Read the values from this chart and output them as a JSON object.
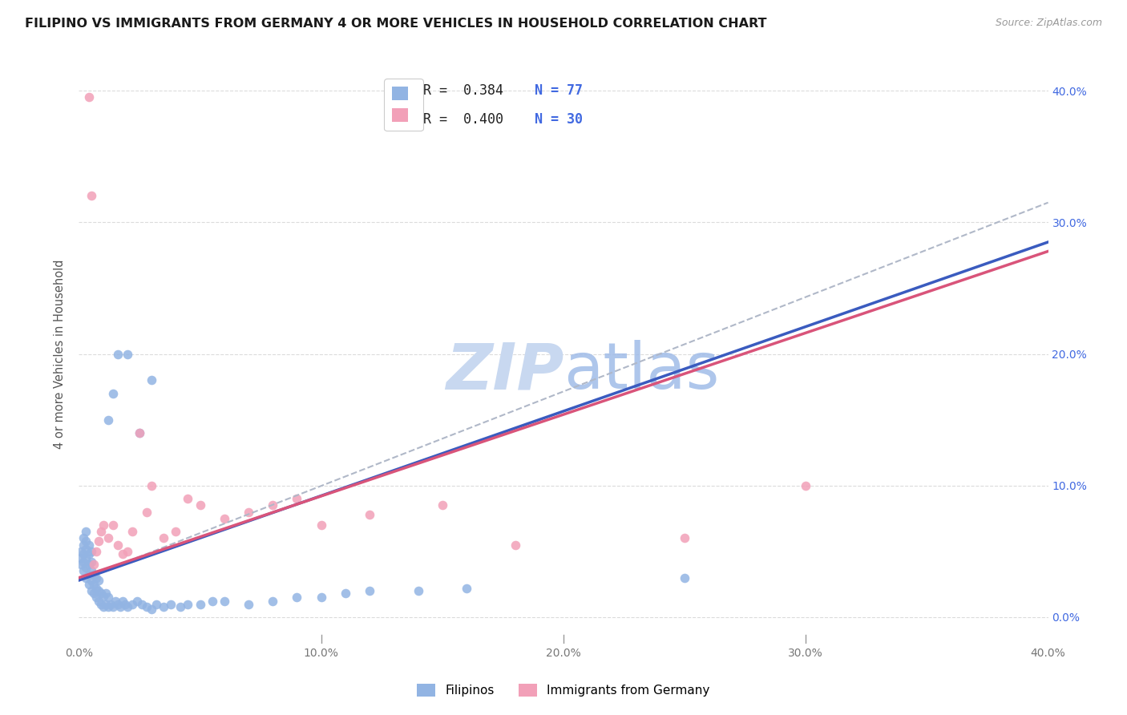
{
  "title": "FILIPINO VS IMMIGRANTS FROM GERMANY 4 OR MORE VEHICLES IN HOUSEHOLD CORRELATION CHART",
  "source": "Source: ZipAtlas.com",
  "ylabel": "4 or more Vehicles in Household",
  "xlim": [
    0.0,
    0.4
  ],
  "ylim": [
    -0.02,
    0.42
  ],
  "xtick_vals": [
    0.0,
    0.1,
    0.2,
    0.3,
    0.4
  ],
  "xtick_labels": [
    "0.0%",
    "10.0%",
    "20.0%",
    "30.0%",
    "40.0%"
  ],
  "ytick_vals": [
    0.0,
    0.1,
    0.2,
    0.3,
    0.4
  ],
  "ytick_labels_right": [
    "0.0%",
    "10.0%",
    "20.0%",
    "30.0%",
    "40.0%"
  ],
  "legend_R_fil": "R =  0.384",
  "legend_N_fil": "N = 77",
  "legend_R_ger": "R =  0.400",
  "legend_N_ger": "N = 30",
  "legend_labels": [
    "Filipinos",
    "Immigrants from Germany"
  ],
  "filipino_color": "#92b4e3",
  "german_color": "#f2a0b8",
  "filipino_line_color": "#3a5bbf",
  "german_line_color": "#d9547a",
  "dashed_line_color": "#b0b8c8",
  "watermark_color": "#c8d8f0",
  "background_color": "#ffffff",
  "grid_color": "#d8d8d8",
  "fil_x": [
    0.001,
    0.001,
    0.001,
    0.002,
    0.002,
    0.002,
    0.002,
    0.002,
    0.003,
    0.003,
    0.003,
    0.003,
    0.003,
    0.003,
    0.004,
    0.004,
    0.004,
    0.004,
    0.004,
    0.005,
    0.005,
    0.005,
    0.005,
    0.005,
    0.006,
    0.006,
    0.006,
    0.007,
    0.007,
    0.007,
    0.008,
    0.008,
    0.008,
    0.009,
    0.009,
    0.01,
    0.01,
    0.011,
    0.011,
    0.012,
    0.012,
    0.013,
    0.014,
    0.015,
    0.016,
    0.017,
    0.018,
    0.019,
    0.02,
    0.022,
    0.024,
    0.026,
    0.028,
    0.03,
    0.032,
    0.035,
    0.038,
    0.042,
    0.045,
    0.05,
    0.055,
    0.06,
    0.07,
    0.08,
    0.09,
    0.1,
    0.11,
    0.12,
    0.14,
    0.16,
    0.012,
    0.014,
    0.016,
    0.02,
    0.025,
    0.03,
    0.25
  ],
  "fil_y": [
    0.04,
    0.045,
    0.05,
    0.035,
    0.042,
    0.048,
    0.055,
    0.06,
    0.03,
    0.038,
    0.045,
    0.052,
    0.058,
    0.065,
    0.025,
    0.032,
    0.04,
    0.048,
    0.055,
    0.02,
    0.028,
    0.035,
    0.042,
    0.05,
    0.018,
    0.025,
    0.032,
    0.015,
    0.022,
    0.03,
    0.012,
    0.02,
    0.028,
    0.01,
    0.018,
    0.008,
    0.016,
    0.01,
    0.018,
    0.008,
    0.015,
    0.01,
    0.008,
    0.012,
    0.01,
    0.008,
    0.012,
    0.01,
    0.008,
    0.01,
    0.012,
    0.01,
    0.008,
    0.006,
    0.01,
    0.008,
    0.01,
    0.008,
    0.01,
    0.01,
    0.012,
    0.012,
    0.01,
    0.012,
    0.015,
    0.015,
    0.018,
    0.02,
    0.02,
    0.022,
    0.15,
    0.17,
    0.2,
    0.2,
    0.14,
    0.18,
    0.03
  ],
  "ger_x": [
    0.004,
    0.005,
    0.006,
    0.007,
    0.008,
    0.009,
    0.01,
    0.012,
    0.014,
    0.016,
    0.018,
    0.02,
    0.022,
    0.025,
    0.028,
    0.03,
    0.035,
    0.04,
    0.045,
    0.05,
    0.06,
    0.07,
    0.08,
    0.09,
    0.1,
    0.12,
    0.15,
    0.18,
    0.25,
    0.3
  ],
  "ger_y": [
    0.395,
    0.32,
    0.04,
    0.05,
    0.058,
    0.065,
    0.07,
    0.06,
    0.07,
    0.055,
    0.048,
    0.05,
    0.065,
    0.14,
    0.08,
    0.1,
    0.06,
    0.065,
    0.09,
    0.085,
    0.075,
    0.08,
    0.085,
    0.09,
    0.07,
    0.078,
    0.085,
    0.055,
    0.06,
    0.1
  ],
  "fil_line_x0": 0.0,
  "fil_line_y0": 0.028,
  "fil_line_x1": 0.4,
  "fil_line_y1": 0.285,
  "ger_line_x0": 0.0,
  "ger_line_y0": 0.03,
  "ger_line_x1": 0.4,
  "ger_line_y1": 0.278,
  "dash_line_x0": 0.0,
  "dash_line_y0": 0.028,
  "dash_line_x1": 0.4,
  "dash_line_y1": 0.315
}
